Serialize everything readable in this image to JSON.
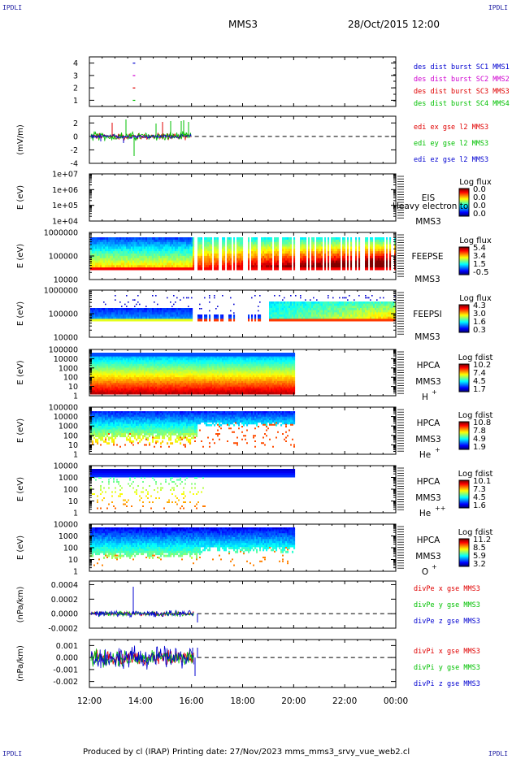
{
  "header": {
    "corner_label": "IPDLI",
    "spacecraft": "MMS3",
    "datetime": "28/Oct/2015 12:00"
  },
  "footer": {
    "text": "Produced by cl (IRAP)   Printing date: 27/Nov/2023   mms_mms3_srvy_vue_web2.cl"
  },
  "colors": {
    "red": "#e00000",
    "green": "#00c000",
    "blue": "#0000d0",
    "magenta": "#d000d0",
    "darkgreen": "#008800",
    "label_blue": "#0000a0"
  },
  "time_axis": {
    "ticks": [
      "12:00",
      "14:00",
      "16:00",
      "18:00",
      "20:00",
      "22:00",
      "00:00"
    ],
    "range_hours": [
      12,
      24
    ]
  },
  "chart_data": [
    {
      "id": "burst",
      "type": "scatter",
      "ylabel": "",
      "ylim": [
        0.5,
        4.5
      ],
      "yticks": [
        "1",
        "2",
        "3",
        "4"
      ],
      "series": [
        {
          "name": "des dist burst SC1 MMS1",
          "color": "#0000d0",
          "points": [
            [
              13.0,
              4
            ]
          ]
        },
        {
          "name": "des dist burst SC2 MMS2",
          "color": "#d000d0",
          "points": [
            [
              13.0,
              3
            ]
          ]
        },
        {
          "name": "des dist burst SC3 MMS3",
          "color": "#e00000",
          "points": [
            [
              13.0,
              2
            ]
          ]
        },
        {
          "name": "des dist burst SC4 MMS4",
          "color": "#00c000",
          "points": [
            [
              13.0,
              1
            ]
          ]
        }
      ]
    },
    {
      "id": "edi",
      "type": "line",
      "ylabel": "(mV/m)",
      "ylim": [
        -4,
        3
      ],
      "yticks": [
        "-4",
        "-2",
        "0",
        "2"
      ],
      "data_end_hour": 16.0,
      "series": [
        {
          "name": "edi ex gse l2 MMS3",
          "color": "#e00000"
        },
        {
          "name": "edi ey gse l2 MMS3",
          "color": "#00c000"
        },
        {
          "name": "edi ez gse l2 MMS3",
          "color": "#0000d0"
        }
      ]
    },
    {
      "id": "eis",
      "type": "heatmap",
      "ylabel": "E (eV)",
      "yticks": [
        "1e+04",
        "1e+05",
        "1e+06",
        "1e+07"
      ],
      "instrument": [
        "EIS",
        "MMS3"
      ],
      "overlay_text": "Heavy electron to",
      "colorbar_title": "Log flux",
      "colorbar_ticks": [
        "0.0",
        "0.0",
        "0.0",
        "0.0"
      ]
    },
    {
      "id": "feepse",
      "type": "heatmap",
      "ylabel": "E (eV)",
      "yticks": [
        "10000",
        "100000",
        "1000000"
      ],
      "instrument": [
        "FEEPSE",
        "MMS3"
      ],
      "colorbar_title": "Log flux",
      "colorbar_ticks": [
        "5.4",
        "3.4",
        "1.5",
        "-0.5"
      ]
    },
    {
      "id": "feepsi",
      "type": "heatmap",
      "ylabel": "E (eV)",
      "yticks": [
        "10000",
        "100000",
        "1000000"
      ],
      "instrument": [
        "FEEPSI",
        "MMS3"
      ],
      "colorbar_title": "Log flux",
      "colorbar_ticks": [
        "4.3",
        "3.0",
        "1.6",
        "0.3"
      ]
    },
    {
      "id": "hpca_h",
      "type": "heatmap",
      "ylabel": "E (eV)",
      "yticks": [
        "1",
        "10",
        "100",
        "1000",
        "10000",
        "100000"
      ],
      "instrument": [
        "HPCA",
        "MMS3"
      ],
      "species": "H",
      "charge": "+",
      "data_end_hour": 20.0,
      "colorbar_title": "Log fdist",
      "colorbar_ticks": [
        "10.2",
        "7.4",
        "4.5",
        "1.7"
      ]
    },
    {
      "id": "hpca_he",
      "type": "heatmap",
      "ylabel": "E (eV)",
      "yticks": [
        "1",
        "10",
        "100",
        "1000",
        "10000",
        "100000"
      ],
      "instrument": [
        "HPCA",
        "MMS3"
      ],
      "species": "He",
      "charge": "+",
      "data_end_hour": 20.0,
      "colorbar_title": "Log fdist",
      "colorbar_ticks": [
        "10.8",
        "7.8",
        "4.9",
        "1.9"
      ]
    },
    {
      "id": "hpca_hepp",
      "type": "heatmap",
      "ylabel": "E (eV)",
      "yticks": [
        "1",
        "10",
        "100",
        "1000",
        "10000"
      ],
      "instrument": [
        "HPCA",
        "MMS3"
      ],
      "species": "He",
      "charge": "++",
      "data_end_hour": 20.0,
      "colorbar_title": "Log fdist",
      "colorbar_ticks": [
        "10.1",
        "7.3",
        "4.5",
        "1.6"
      ]
    },
    {
      "id": "hpca_o",
      "type": "heatmap",
      "ylabel": "E (eV)",
      "yticks": [
        "1",
        "10",
        "100",
        "1000",
        "10000"
      ],
      "instrument": [
        "HPCA",
        "MMS3"
      ],
      "species": "O",
      "charge": "+",
      "data_end_hour": 20.0,
      "colorbar_title": "Log fdist",
      "colorbar_ticks": [
        "11.2",
        "8.5",
        "5.9",
        "3.2"
      ]
    },
    {
      "id": "divpe",
      "type": "line",
      "ylabel": "(nPa/km)",
      "ylim": [
        -0.0002,
        0.00045
      ],
      "yticks": [
        "-0.0002",
        "0.0000",
        "0.0002",
        "0.0004"
      ],
      "data_end_hour": 16.1,
      "series": [
        {
          "name": "divPe x gse MMS3",
          "color": "#e00000"
        },
        {
          "name": "divPe y gse MMS3",
          "color": "#00c000"
        },
        {
          "name": "divPe z gse MMS3",
          "color": "#0000d0"
        }
      ]
    },
    {
      "id": "divpi",
      "type": "line",
      "ylabel": "(nPa/km)",
      "ylim": [
        -0.0025,
        0.0015
      ],
      "yticks": [
        "-0.002",
        "-0.001",
        "0.000",
        "0.001"
      ],
      "data_end_hour": 16.1,
      "series": [
        {
          "name": "divPi x gse MMS3",
          "color": "#e00000"
        },
        {
          "name": "divPi y gse MMS3",
          "color": "#00c000"
        },
        {
          "name": "divPi z gse MMS3",
          "color": "#0000d0"
        }
      ]
    }
  ]
}
